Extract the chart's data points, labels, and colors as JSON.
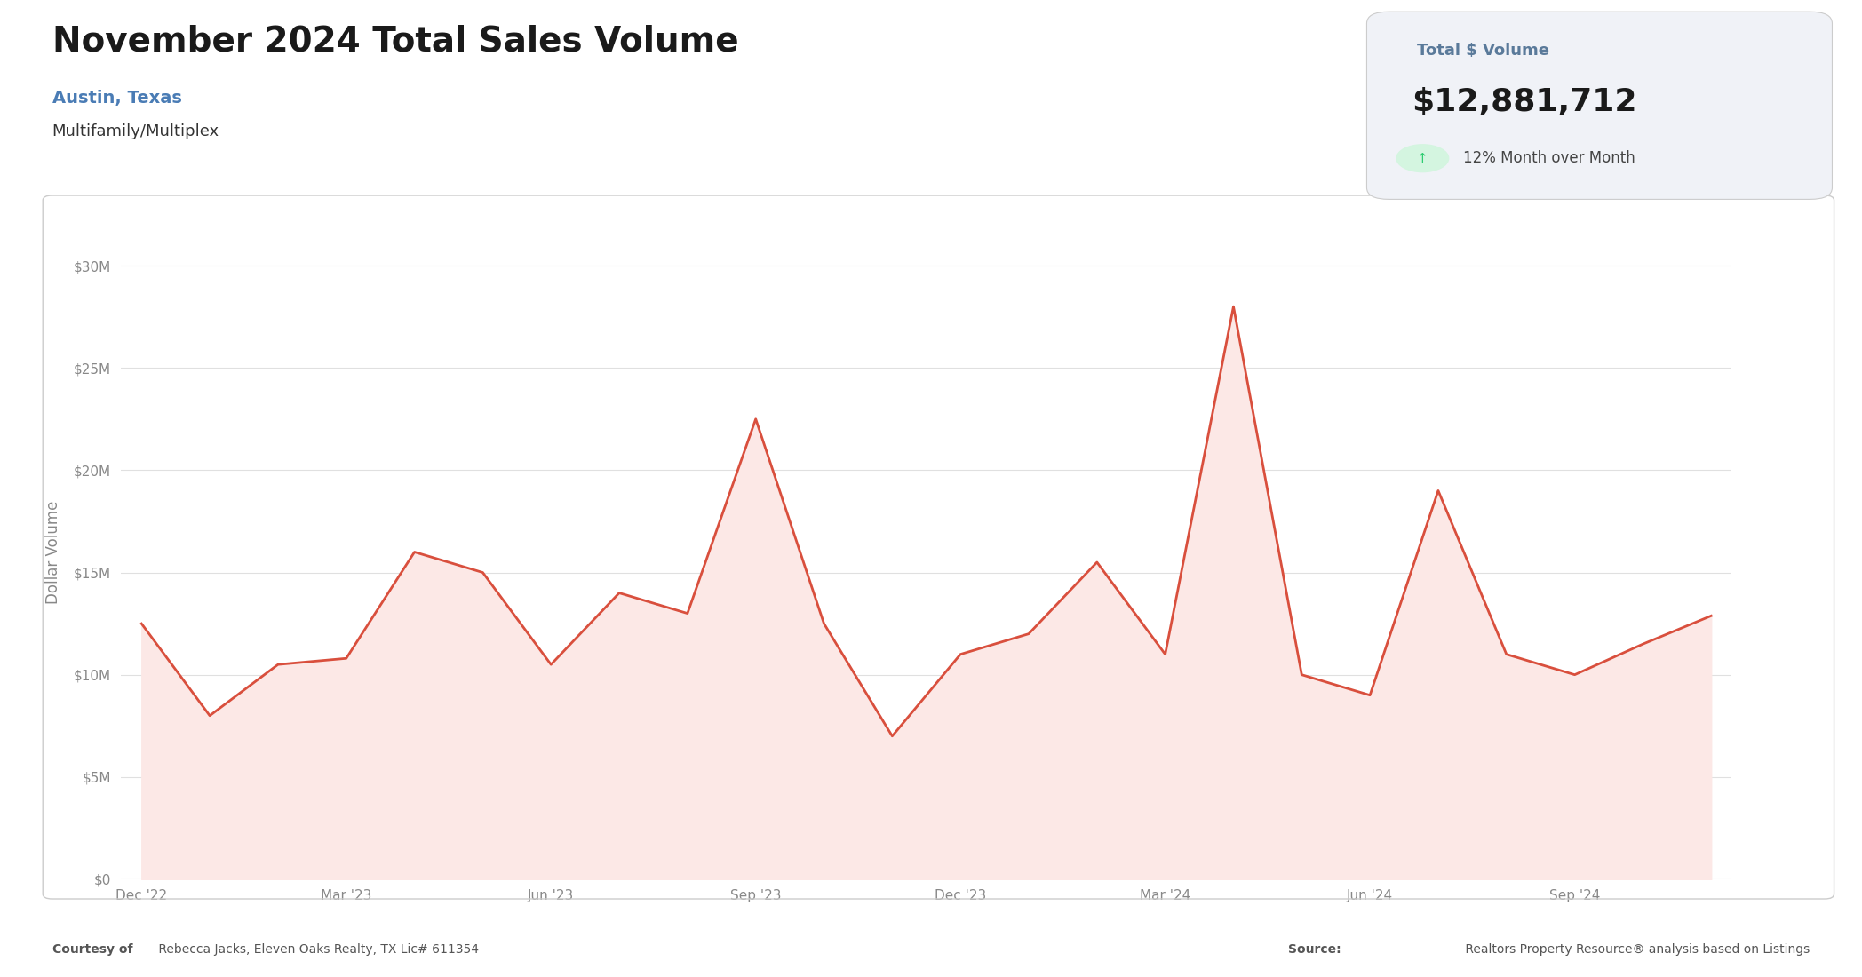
{
  "title": "November 2024 Total Sales Volume",
  "subtitle1": "Austin, Texas",
  "subtitle2": "Multifamily/Multiplex",
  "total_volume_label": "Total $ Volume",
  "total_volume_value": "$12,881,712",
  "mom_change": "12% Month over Month",
  "ylabel": "Dollar Volume",
  "x_labels": [
    "Dec '22",
    "Mar '23",
    "Jun '23",
    "Sep '23",
    "Dec '23",
    "Mar '24",
    "Jun '24",
    "Sep '24"
  ],
  "x_tick_positions": [
    0,
    3,
    6,
    9,
    12,
    15,
    18,
    21
  ],
  "data_months": [
    "Dec '22",
    "Jan '23",
    "Feb '23",
    "Mar '23",
    "Apr '23",
    "May '23",
    "Jun '23",
    "Jul '23",
    "Aug '23",
    "Sep '23",
    "Oct '23",
    "Nov '23",
    "Dec '23",
    "Jan '24",
    "Feb '24",
    "Mar '24",
    "Apr '24",
    "May '24",
    "Jun '24",
    "Jul '24",
    "Aug '24",
    "Sep '24",
    "Oct '24",
    "Nov '24"
  ],
  "values": [
    12500000,
    8000000,
    10500000,
    10800000,
    16000000,
    15000000,
    10500000,
    14000000,
    13000000,
    22500000,
    12500000,
    7000000,
    11000000,
    12000000,
    15500000,
    11000000,
    28000000,
    10000000,
    9000000,
    19000000,
    11000000,
    10000000,
    11500000,
    12881712
  ],
  "line_color": "#d94f3d",
  "fill_color": "#fce8e6",
  "background_color": "#ffffff",
  "chart_bg": "#ffffff",
  "outer_bg": "#ffffff",
  "grid_color": "#e0e0e0",
  "axis_label_color": "#888888",
  "title_color": "#1a1a1a",
  "subtitle1_color": "#4a7cb5",
  "subtitle2_color": "#333333",
  "footer_left_bold": "Courtesy of",
  "footer_left_rest": " Rebecca Jacks, Eleven Oaks Realty, TX Lic# 611354",
  "footer_right_bold": "Source:",
  "footer_right_rest": " Realtors Property Resource® analysis based on Listings",
  "ytick_labels": [
    "$0",
    "$5M",
    "$10M",
    "$15M",
    "$20M",
    "$25M",
    "$30M"
  ],
  "ytick_values": [
    0,
    5000000,
    10000000,
    15000000,
    20000000,
    25000000,
    30000000
  ],
  "ylim": [
    0,
    32000000
  ],
  "infobox_bg": "#f0f2f7",
  "infobox_label_color": "#5a7a9a",
  "infobox_value_color": "#1a1a1a",
  "mom_color": "#444444",
  "arrow_color": "#2ecc71",
  "arrow_bg": "#d4f5e0"
}
